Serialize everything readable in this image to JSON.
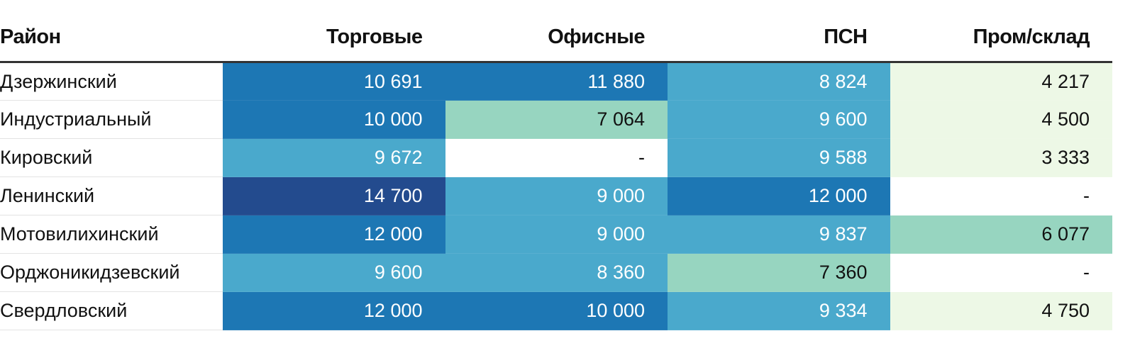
{
  "chart_data": {
    "type": "heatmap",
    "columns": [
      "Район",
      "Торговые",
      "Офисные",
      "ПСН",
      "Пром/склад"
    ],
    "rows": [
      {
        "name": "Дзержинский",
        "values": [
          "10 691",
          "11 880",
          "8 824",
          "4 217"
        ],
        "num": [
          10691,
          11880,
          8824,
          4217
        ]
      },
      {
        "name": "Индустриальный",
        "values": [
          "10 000",
          "7 064",
          "9 600",
          "4 500"
        ],
        "num": [
          10000,
          7064,
          9600,
          4500
        ]
      },
      {
        "name": "Кировский",
        "values": [
          "9 672",
          "-",
          "9 588",
          "3 333"
        ],
        "num": [
          9672,
          null,
          9588,
          3333
        ]
      },
      {
        "name": "Ленинский",
        "values": [
          "14 700",
          "9 000",
          "12 000",
          "-"
        ],
        "num": [
          14700,
          9000,
          12000,
          null
        ]
      },
      {
        "name": "Мотовилихинский",
        "values": [
          "12 000",
          "9 000",
          "9 837",
          "6 077"
        ],
        "num": [
          12000,
          9000,
          9837,
          6077
        ]
      },
      {
        "name": "Орджоникидзевский",
        "values": [
          "9 600",
          "8 360",
          "7 360",
          "-"
        ],
        "num": [
          9600,
          8360,
          7360,
          null
        ]
      },
      {
        "name": "Свердловский",
        "values": [
          "12 000",
          "10 000",
          "9 334",
          "4 750"
        ],
        "num": [
          12000,
          10000,
          9334,
          4750
        ]
      }
    ],
    "color_scale": [
      {
        "max": 4999,
        "bg": "#edf8e6",
        "fg": "#111111"
      },
      {
        "max": 7999,
        "bg": "#97d5c0",
        "fg": "#111111"
      },
      {
        "max": 9999,
        "bg": "#4aa9cc",
        "fg": "#ffffff"
      },
      {
        "max": 13999,
        "bg": "#1d77b4",
        "fg": "#ffffff"
      },
      {
        "max": 99999,
        "bg": "#234b8e",
        "fg": "#ffffff"
      }
    ],
    "missing_bg": "#ffffff",
    "missing_fg": "#111111"
  }
}
